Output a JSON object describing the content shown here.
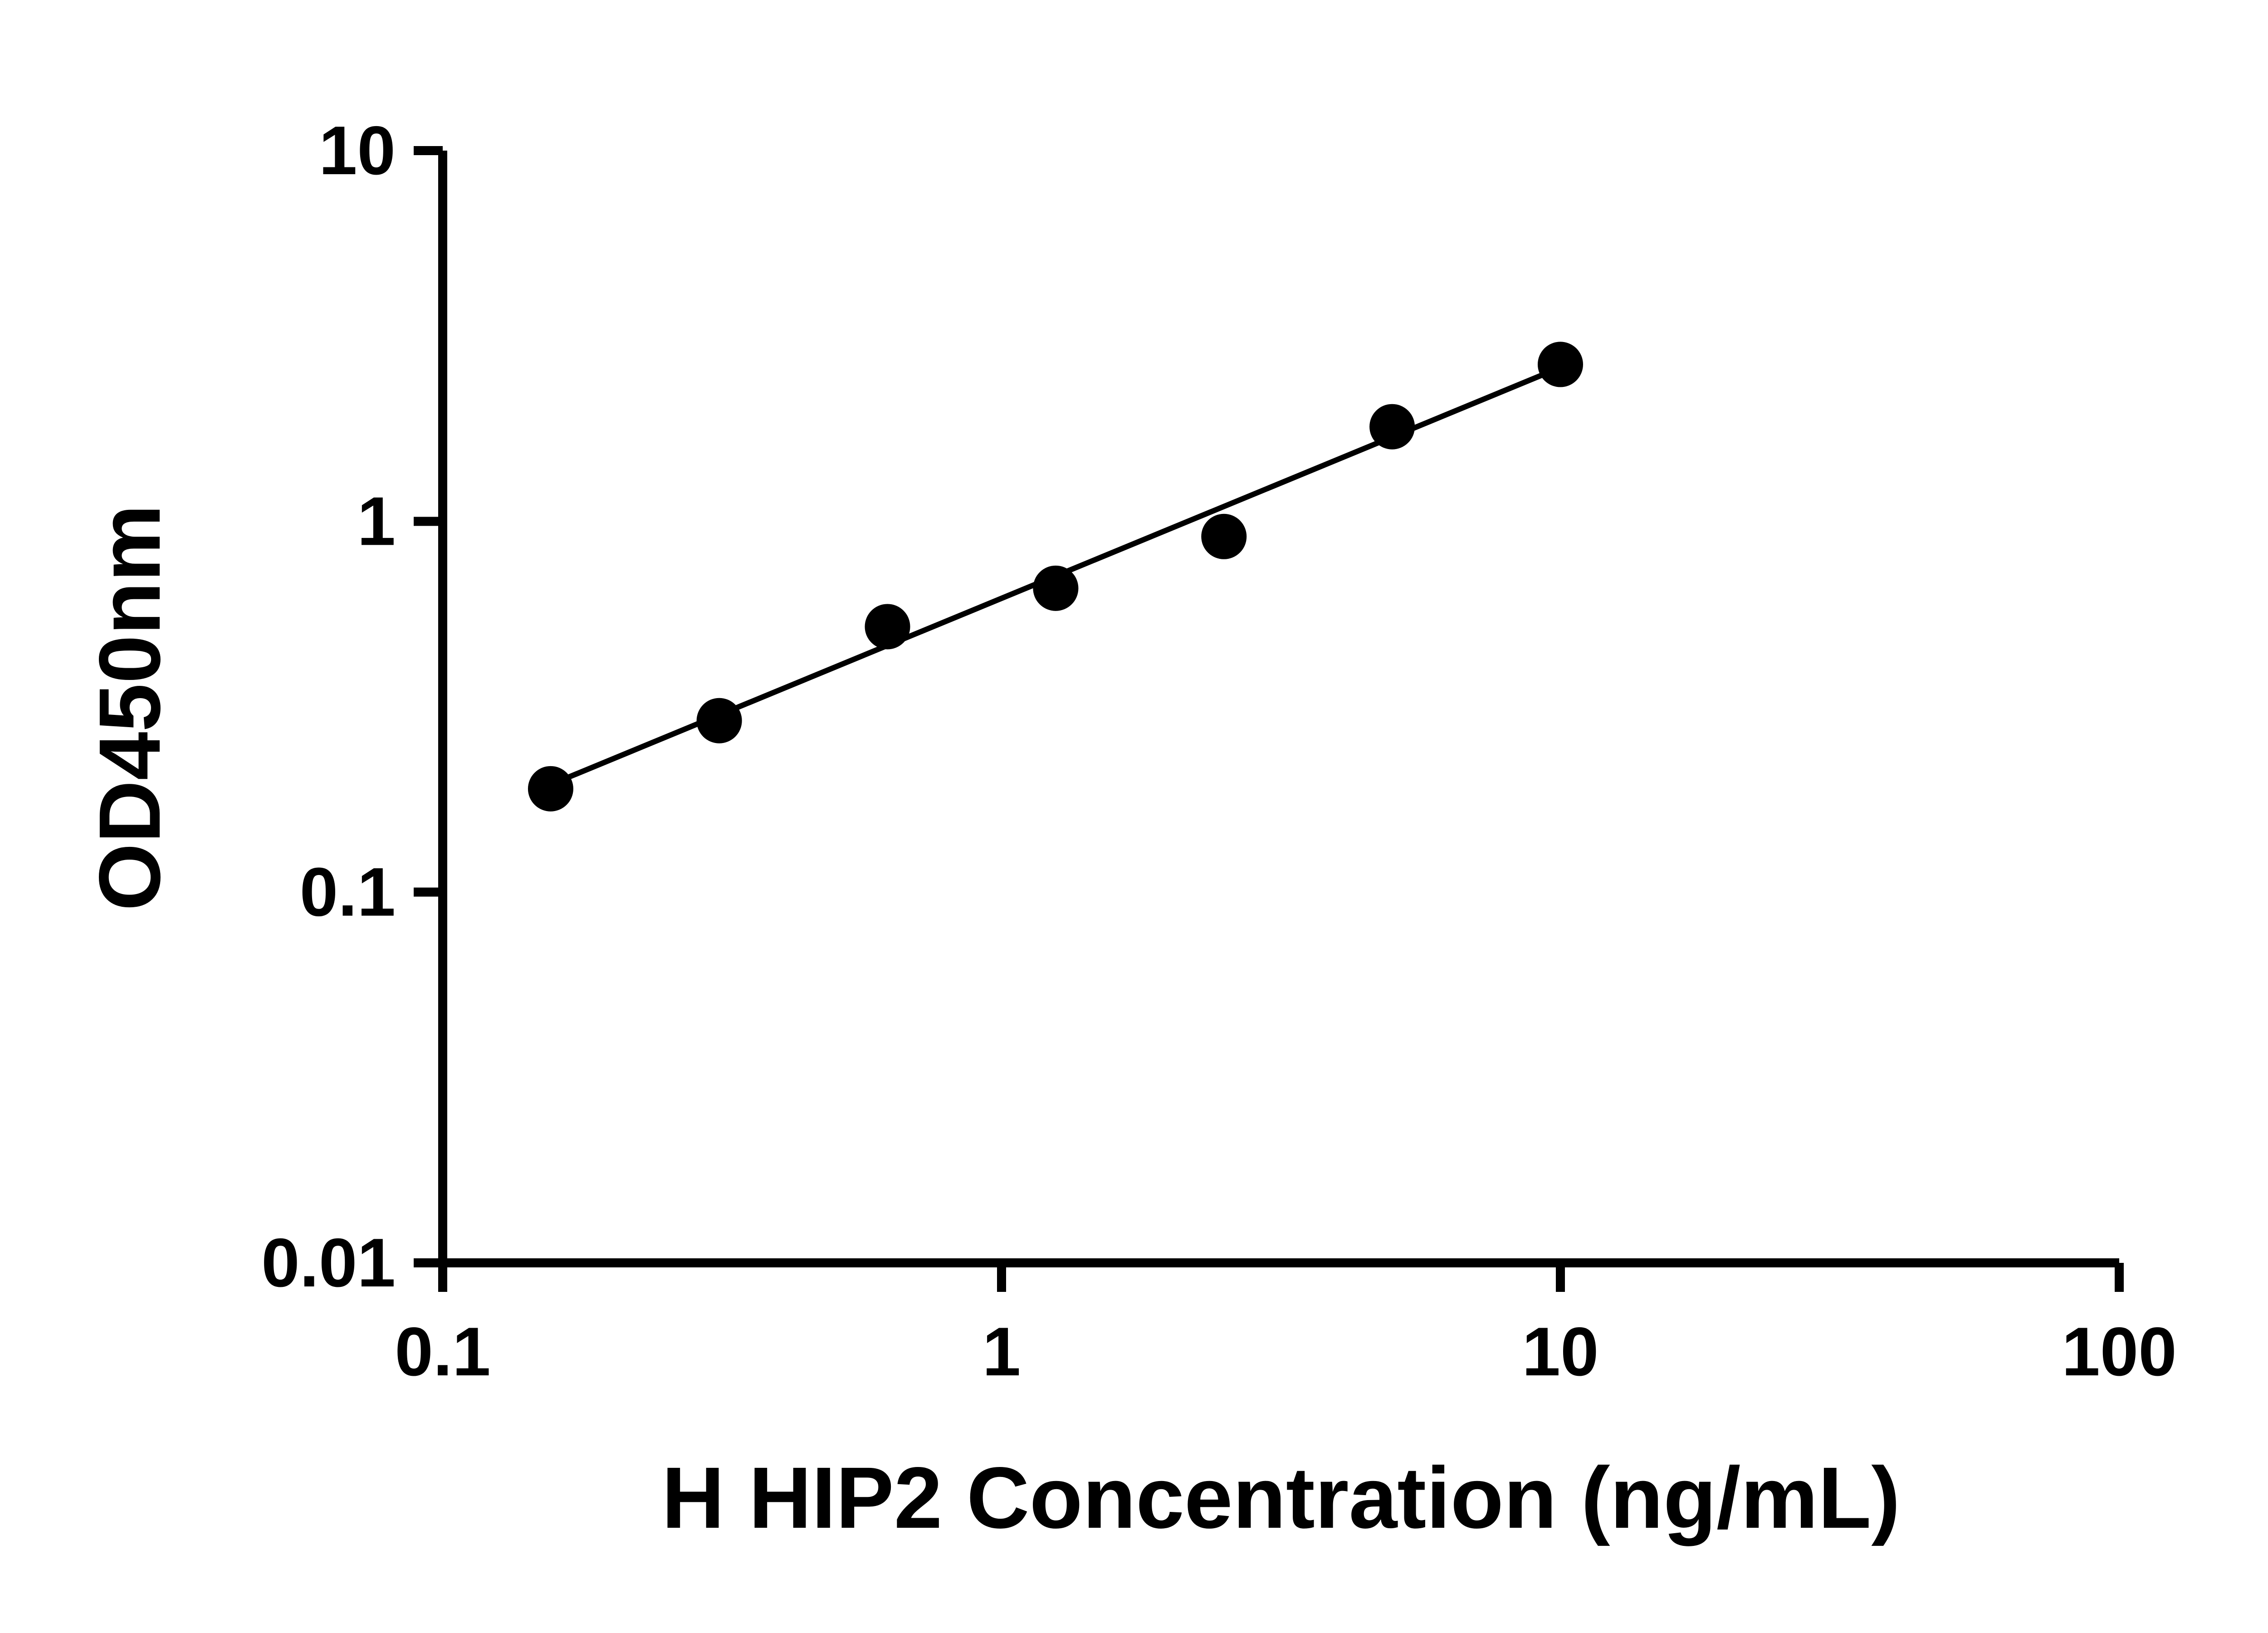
{
  "chart_data": {
    "type": "scatter",
    "x": [
      0.156,
      0.3125,
      0.625,
      1.25,
      2.5,
      5,
      10
    ],
    "y": [
      0.19,
      0.29,
      0.52,
      0.66,
      0.91,
      1.8,
      2.65
    ],
    "trend_line": {
      "style": "power-fit-straight-in-loglog",
      "x_start": 0.156,
      "y_start": 0.195,
      "x_end": 10,
      "y_end": 2.6
    },
    "xlabel": "H HIP2 Concentration (ng/mL)",
    "ylabel": "OD450nm",
    "x_scale": "log",
    "y_scale": "log",
    "xlim": [
      0.1,
      100
    ],
    "ylim": [
      0.01,
      10
    ],
    "x_ticks": [
      0.1,
      1,
      10,
      100
    ],
    "x_tick_labels": [
      "0.1",
      "1",
      "10",
      "100"
    ],
    "y_ticks": [
      0.01,
      0.1,
      1,
      10
    ],
    "y_tick_labels": [
      "0.01",
      "0.1",
      "1",
      "10"
    ],
    "grid": false,
    "legend": false,
    "marker_shape": "filled-circle",
    "marker_color": "#000000",
    "line_color": "#000000",
    "axis_color": "#000000",
    "background": "#ffffff"
  }
}
